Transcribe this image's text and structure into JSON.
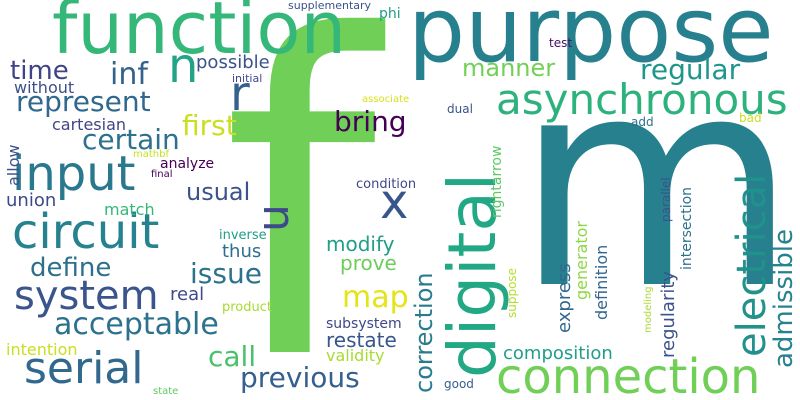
{
  "words": [
    {
      "text": "f",
      "color": "#6fcf57",
      "vertical": false
    },
    {
      "text": "m",
      "color": "#26808e",
      "vertical": false
    },
    {
      "text": "purpose",
      "color": "#26808e",
      "vertical": false
    },
    {
      "text": "function",
      "color": "#35b779",
      "vertical": false
    },
    {
      "text": "digital",
      "color": "#22a884",
      "vertical": true
    },
    {
      "text": "connection",
      "color": "#6fcf57",
      "vertical": false
    },
    {
      "text": "asynchronous",
      "color": "#2db27d",
      "vertical": false
    },
    {
      "text": "electrical",
      "color": "#21918c",
      "vertical": true
    },
    {
      "text": "circuit",
      "color": "#26828e",
      "vertical": false
    },
    {
      "text": "input",
      "color": "#2a788e",
      "vertical": false
    },
    {
      "text": "serial",
      "color": "#31688e",
      "vertical": false
    },
    {
      "text": "system",
      "color": "#3a548c",
      "vertical": false
    },
    {
      "text": "n",
      "color": "#20a386",
      "vertical": false
    },
    {
      "text": "r",
      "color": "#33638d",
      "vertical": false
    },
    {
      "text": "u",
      "color": "#3e4a89",
      "vertical": true
    },
    {
      "text": "x",
      "color": "#39568c",
      "vertical": false
    },
    {
      "text": "inf",
      "color": "#33638d",
      "vertical": false
    },
    {
      "text": "time",
      "color": "#404387",
      "vertical": false
    },
    {
      "text": "represent",
      "color": "#31688e",
      "vertical": false
    },
    {
      "text": "certain",
      "color": "#2d718e",
      "vertical": false
    },
    {
      "text": "first",
      "color": "#c8e020",
      "vertical": false
    },
    {
      "text": "bring",
      "color": "#440154",
      "vertical": false
    },
    {
      "text": "manner",
      "color": "#73d056",
      "vertical": false
    },
    {
      "text": "regular",
      "color": "#1f968b",
      "vertical": false
    },
    {
      "text": "admissible",
      "color": "#26828e",
      "vertical": true
    },
    {
      "text": "acceptable",
      "color": "#2c728e",
      "vertical": false
    },
    {
      "text": "define",
      "color": "#2d708e",
      "vertical": false
    },
    {
      "text": "map",
      "color": "#e5e419",
      "vertical": false
    },
    {
      "text": "previous",
      "color": "#355f8d",
      "vertical": false
    },
    {
      "text": "correction",
      "color": "#287c8e",
      "vertical": true
    },
    {
      "text": "restate",
      "color": "#39568c",
      "vertical": false
    },
    {
      "text": "issue",
      "color": "#2c728e",
      "vertical": false
    },
    {
      "text": "call",
      "color": "#4ac16d",
      "vertical": false
    },
    {
      "text": "usual",
      "color": "#3b528b",
      "vertical": false
    },
    {
      "text": "possible",
      "color": "#3b528b",
      "vertical": false
    },
    {
      "text": "without",
      "color": "#3d4e8a",
      "vertical": false
    },
    {
      "text": "cartesian",
      "color": "#414487",
      "vertical": false
    },
    {
      "text": "union",
      "color": "#3e4989",
      "vertical": false
    },
    {
      "text": "allow",
      "color": "#3b528b",
      "vertical": true
    },
    {
      "text": "match",
      "color": "#35b779",
      "vertical": false
    },
    {
      "text": "thus",
      "color": "#2e6e8e",
      "vertical": false
    },
    {
      "text": "real",
      "color": "#3e4a89",
      "vertical": false
    },
    {
      "text": "intention",
      "color": "#c8e020",
      "vertical": false
    },
    {
      "text": "modify",
      "color": "#1f9e89",
      "vertical": false
    },
    {
      "text": "prove",
      "color": "#6ccd5a",
      "vertical": false
    },
    {
      "text": "validity",
      "color": "#a8db34",
      "vertical": false
    },
    {
      "text": "subsystem",
      "color": "#3f4788",
      "vertical": false
    },
    {
      "text": "composition",
      "color": "#1f9e89",
      "vertical": false
    },
    {
      "text": "regularity",
      "color": "#3b528b",
      "vertical": true
    },
    {
      "text": "express",
      "color": "#31688e",
      "vertical": true
    },
    {
      "text": "definition",
      "color": "#32658e",
      "vertical": true
    },
    {
      "text": "generator",
      "color": "#8ed645",
      "vertical": true
    },
    {
      "text": "rightarrow",
      "color": "#5ec962",
      "vertical": true
    },
    {
      "text": "intersection",
      "color": "#2d708e",
      "vertical": true
    },
    {
      "text": "parallel",
      "color": "#3b528b",
      "vertical": true
    },
    {
      "text": "suppose",
      "color": "#b5de2b",
      "vertical": true
    },
    {
      "text": "modeling",
      "color": "#a8db34",
      "vertical": true
    },
    {
      "text": "condition",
      "color": "#3f4788",
      "vertical": false
    },
    {
      "text": "analyze",
      "color": "#440154",
      "vertical": false
    },
    {
      "text": "inverse",
      "color": "#1f9e89",
      "vertical": false
    },
    {
      "text": "product",
      "color": "#a8db34",
      "vertical": false
    },
    {
      "text": "supplementary",
      "color": "#3b528b",
      "vertical": false
    },
    {
      "text": "phi",
      "color": "#1f9e89",
      "vertical": false
    },
    {
      "text": "test",
      "color": "#471164",
      "vertical": false
    },
    {
      "text": "initial",
      "color": "#3f4788",
      "vertical": false
    },
    {
      "text": "associate",
      "color": "#d8e219",
      "vertical": false
    },
    {
      "text": "dual",
      "color": "#3b528b",
      "vertical": false
    },
    {
      "text": "add",
      "color": "#2d708e",
      "vertical": false
    },
    {
      "text": "bad",
      "color": "#c8e020",
      "vertical": false
    },
    {
      "text": "mathbf",
      "color": "#c8e020",
      "vertical": false
    },
    {
      "text": "final",
      "color": "#440154",
      "vertical": false
    },
    {
      "text": "good",
      "color": "#355f8d",
      "vertical": false
    },
    {
      "text": "state",
      "color": "#5ec962",
      "vertical": false
    }
  ]
}
